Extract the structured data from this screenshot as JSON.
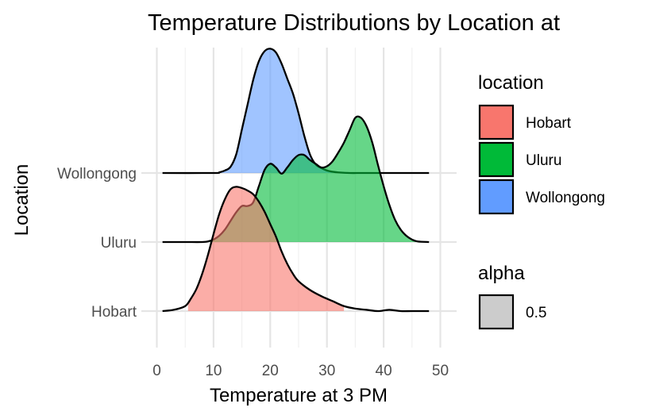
{
  "chart_data": {
    "type": "ridgeline",
    "title": "Temperature Distributions by Location at",
    "xlabel": "Temperature at 3 PM",
    "ylabel": "Location",
    "xlim": [
      0,
      50
    ],
    "x_ticks": [
      0,
      10,
      20,
      30,
      40,
      50
    ],
    "categories": [
      "Hobart",
      "Uluru",
      "Wollongong"
    ],
    "grid": true,
    "legend_position": "right",
    "legends": [
      {
        "title": "location",
        "items": [
          {
            "label": "Hobart",
            "color": "#F8766D"
          },
          {
            "label": "Uluru",
            "color": "#00BA38"
          },
          {
            "label": "Wollongong",
            "color": "#619CFF"
          }
        ]
      },
      {
        "title": "alpha",
        "items": [
          {
            "label": "0.5",
            "color": "#cccccc"
          }
        ]
      }
    ],
    "fill_alpha": 0.6,
    "density_scale_max": 1.8,
    "series": [
      {
        "name": "Hobart",
        "color": "#F8766D",
        "fill_range": [
          5.5,
          33
        ],
        "x": [
          1,
          3,
          5,
          6,
          7,
          8,
          9,
          10,
          11,
          12,
          13,
          14,
          15,
          16,
          17,
          18,
          19,
          20,
          21,
          22,
          23,
          24,
          25,
          27,
          29,
          31,
          33,
          35,
          37,
          39,
          41,
          43,
          45,
          48
        ],
        "density": [
          0.0,
          0.01,
          0.04,
          0.1,
          0.18,
          0.3,
          0.45,
          0.62,
          0.78,
          0.9,
          0.98,
          1.0,
          0.99,
          0.97,
          0.94,
          0.88,
          0.8,
          0.7,
          0.6,
          0.48,
          0.38,
          0.3,
          0.24,
          0.17,
          0.12,
          0.08,
          0.04,
          0.02,
          0.01,
          0.0,
          0.01,
          0.0,
          0.0,
          0.0
        ]
      },
      {
        "name": "Uluru",
        "color": "#00BA38",
        "fill_range": [
          8,
          48
        ],
        "x": [
          1,
          5,
          8,
          9,
          10,
          11,
          12,
          13,
          14,
          15,
          16,
          17,
          18,
          19,
          20,
          21,
          22,
          23,
          24,
          25,
          26,
          27,
          28,
          29,
          30,
          31,
          32,
          33,
          34,
          35,
          36,
          37,
          38,
          39,
          40,
          41,
          42,
          43,
          44,
          45,
          46,
          48
        ],
        "density": [
          0.0,
          0.0,
          0.0,
          0.005,
          0.02,
          0.05,
          0.1,
          0.17,
          0.24,
          0.29,
          0.29,
          0.32,
          0.45,
          0.58,
          0.63,
          0.6,
          0.55,
          0.6,
          0.66,
          0.7,
          0.7,
          0.66,
          0.63,
          0.6,
          0.61,
          0.65,
          0.72,
          0.8,
          0.9,
          1.0,
          1.0,
          0.93,
          0.8,
          0.62,
          0.45,
          0.3,
          0.18,
          0.1,
          0.05,
          0.02,
          0.005,
          0.0
        ]
      },
      {
        "name": "Wollongong",
        "color": "#619CFF",
        "fill_range": [
          11,
          31
        ],
        "x": [
          1,
          10,
          11,
          12,
          13,
          14,
          15,
          16,
          17,
          18,
          19,
          20,
          21,
          22,
          23,
          24,
          25,
          26,
          27,
          28,
          29,
          30,
          31,
          32,
          34,
          36,
          38,
          40,
          44,
          48
        ],
        "density": [
          0.0,
          0.0,
          0.005,
          0.02,
          0.05,
          0.15,
          0.35,
          0.55,
          0.75,
          0.9,
          0.98,
          1.0,
          0.97,
          0.88,
          0.76,
          0.64,
          0.48,
          0.3,
          0.15,
          0.07,
          0.04,
          0.02,
          0.01,
          0.005,
          0.0,
          0.0,
          0.0,
          0.0,
          0.0,
          0.0
        ]
      }
    ]
  }
}
